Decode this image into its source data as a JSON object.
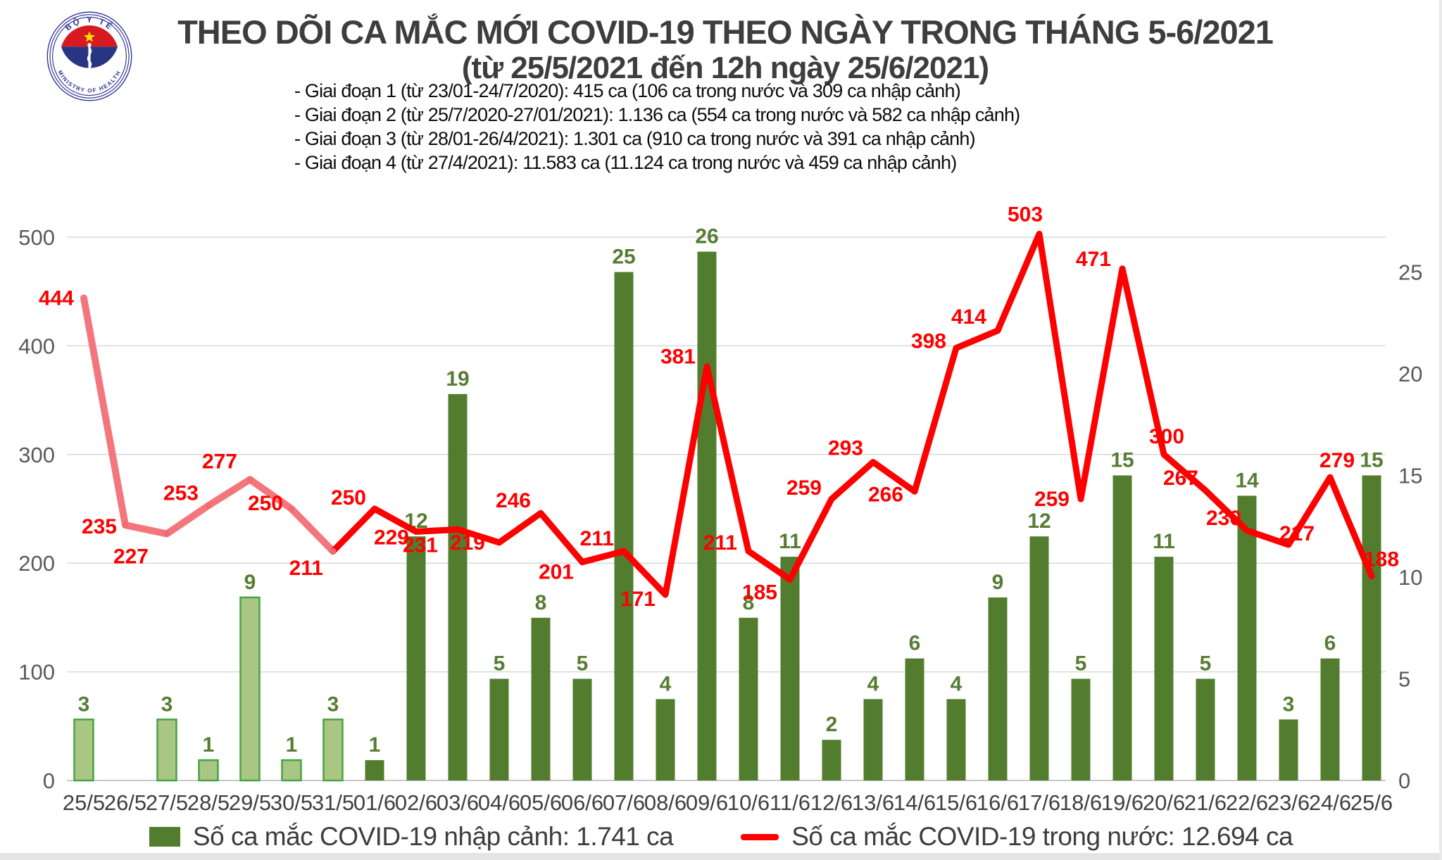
{
  "header": {
    "title": "THEO DÕI CA MẮC MỚI COVID-19 THEO NGÀY TRONG THÁNG 5-6/2021",
    "subtitle": "(từ 25/5/2021 đến 12h ngày 25/6/2021)",
    "phases": [
      "- Giai đoạn 1 (từ 23/01-24/7/2020): 415 ca (106 ca trong nước và 309 ca nhập cảnh)",
      "- Giai đoạn 2 (từ 25/7/2020-27/01/2021): 1.136 ca (554 ca trong nước và 582 ca nhập cảnh)",
      "- Giai đoạn 3 (từ 28/01-26/4/2021): 1.301 ca (910 ca trong nước và 391 ca nhập cảnh)",
      "- Giai đoạn 4 (từ 27/4/2021): 11.583 ca (11.124 ca trong nước và 459 ca nhập cảnh)"
    ],
    "logo": {
      "top_text": "BỘ Y TẾ",
      "bottom_text": "MINISTRY OF HEALTH"
    }
  },
  "chart_data": {
    "type": "bar",
    "subtype": "combo bar+line, dual axis",
    "categories": [
      "25/5",
      "26/5",
      "27/5",
      "28/5",
      "29/5",
      "30/5",
      "31/5",
      "01/6",
      "02/6",
      "03/6",
      "04/6",
      "05/6",
      "06/6",
      "07/6",
      "08/6",
      "09/6",
      "10/6",
      "11/6",
      "12/6",
      "13/6",
      "14/6",
      "15/6",
      "16/6",
      "17/6",
      "18/6",
      "19/6",
      "20/6",
      "21/6",
      "22/6",
      "23/6",
      "24/6",
      "25/6"
    ],
    "series": [
      {
        "name": "Số ca mắc COVID-19 nhập cảnh: 1.741 ca",
        "type": "bar",
        "axis": "right",
        "values": [
          3,
          0,
          3,
          1,
          9,
          1,
          3,
          1,
          12,
          19,
          5,
          8,
          5,
          25,
          4,
          26,
          8,
          11,
          2,
          4,
          6,
          4,
          9,
          12,
          5,
          15,
          11,
          5,
          14,
          3,
          6,
          15
        ]
      },
      {
        "name": "Số ca mắc COVID-19 trong nước: 12.694 ca",
        "type": "line",
        "axis": "left",
        "values": [
          444,
          235,
          227,
          253,
          277,
          250,
          211,
          250,
          229,
          231,
          219,
          246,
          201,
          211,
          171,
          381,
          211,
          185,
          259,
          293,
          266,
          398,
          414,
          503,
          259,
          471,
          300,
          267,
          230,
          217,
          279,
          188
        ]
      }
    ],
    "left_axis": {
      "min": 0,
      "max": 500,
      "ticks": [
        0,
        100,
        200,
        300,
        400,
        500
      ]
    },
    "right_axis": {
      "min": 0,
      "max": 26.7,
      "ticks": [
        0,
        5,
        10,
        15,
        20,
        25
      ]
    },
    "early_phase_count": 7,
    "grid": "horizontal",
    "legend_position": "bottom",
    "colors": {
      "bar": "#527d2e",
      "bar_early_fill": "#a9c683",
      "bar_early_border": "#47a347",
      "bar_label": "#567d33",
      "line": "#fe0000",
      "line_early": "#f4767d",
      "line_label": "#fe0000",
      "axis_text": "#595959",
      "x_text": "#404040",
      "grid": "#d9d9d9"
    }
  }
}
